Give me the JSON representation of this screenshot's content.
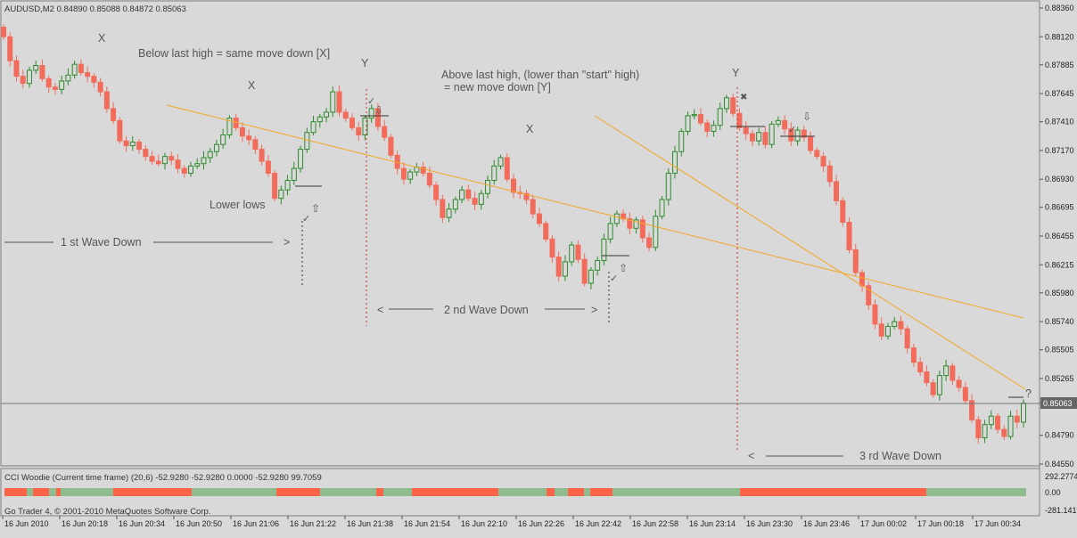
{
  "header": {
    "symbol_line": "AUDUSD,M2  0.84890 0.85088 0.84872 0.85063"
  },
  "annotations": {
    "below_last_high": "Below last high = same move down [X]",
    "above_last_high": "Above last high, (lower than \"start\" high)",
    "new_move_down": "= new move down [Y]",
    "lower_lows": "Lower lows",
    "x": "X",
    "y": "Y",
    "question": "?",
    "wave1": "1 st Wave Down",
    "wave2": "2 nd Wave Down",
    "wave3": "3 rd Wave Down",
    "arrow_right": ">",
    "arrow_left": "<"
  },
  "price_axis": {
    "labels": [
      "0.88360",
      "0.88120",
      "0.87885",
      "0.87645",
      "0.87410",
      "0.87170",
      "0.86930",
      "0.86695",
      "0.86455",
      "0.86215",
      "0.85980",
      "0.85740",
      "0.85505",
      "0.85265",
      "0.85063",
      "0.84790",
      "0.84550"
    ],
    "current": "0.85063"
  },
  "time_axis": {
    "labels": [
      "16 Jun 2010",
      "16 Jun 20:18",
      "16 Jun 20:34",
      "16 Jun 20:50",
      "16 Jun 21:06",
      "16 Jun 21:22",
      "16 Jun 21:38",
      "16 Jun 21:54",
      "16 Jun 22:10",
      "16 Jun 22:26",
      "16 Jun 22:42",
      "16 Jun 22:58",
      "16 Jun 23:14",
      "16 Jun 23:30",
      "16 Jun 23:46",
      "17 Jun 00:02",
      "17 Jun 00:18",
      "17 Jun 00:34"
    ]
  },
  "indicator": {
    "header": "CCI Woodie (Current time frame) (20,6) -52.9280 -52.9280 0.0000 -52.9280 99.7059",
    "copyright": "Go Trader 4, © 2001-2010 MetaQuotes Software Corp.",
    "axis_labels": [
      "292.2774",
      "0.00",
      "-281.1419"
    ]
  },
  "colors": {
    "bull": "#2e8b2e",
    "bear": "#f26b5b",
    "trendline": "#f5a623",
    "cci_green": "#8fbc8f",
    "cci_red": "#ff6347"
  },
  "chart_data": {
    "type": "candlestick",
    "symbol": "AUDUSD",
    "timeframe": "M2",
    "ohlc_last": {
      "open": 0.8489,
      "high": 0.85088,
      "low": 0.84872,
      "close": 0.85063
    },
    "closes": [
      0.8812,
      0.8792,
      0.8779,
      0.8773,
      0.8784,
      0.8788,
      0.8777,
      0.877,
      0.8768,
      0.8775,
      0.878,
      0.8789,
      0.8782,
      0.8779,
      0.8774,
      0.8766,
      0.8752,
      0.8742,
      0.8725,
      0.8721,
      0.8724,
      0.8718,
      0.8712,
      0.8708,
      0.8706,
      0.8712,
      0.8709,
      0.8702,
      0.8698,
      0.8704,
      0.8706,
      0.8711,
      0.8716,
      0.8722,
      0.873,
      0.8744,
      0.8736,
      0.8729,
      0.8726,
      0.8718,
      0.8708,
      0.8698,
      0.8677,
      0.8684,
      0.8692,
      0.8702,
      0.8718,
      0.8732,
      0.8741,
      0.8745,
      0.8749,
      0.8766,
      0.8749,
      0.8744,
      0.8736,
      0.873,
      0.8744,
      0.8752,
      0.8737,
      0.8728,
      0.8713,
      0.8702,
      0.8693,
      0.8699,
      0.8703,
      0.8698,
      0.8688,
      0.8676,
      0.8661,
      0.8668,
      0.8676,
      0.8684,
      0.8677,
      0.8672,
      0.8681,
      0.8692,
      0.8704,
      0.8711,
      0.8693,
      0.8682,
      0.8681,
      0.8676,
      0.8664,
      0.8656,
      0.8643,
      0.8628,
      0.8612,
      0.8624,
      0.8638,
      0.8626,
      0.8606,
      0.8617,
      0.8625,
      0.8643,
      0.8656,
      0.8664,
      0.866,
      0.8652,
      0.8659,
      0.8644,
      0.8636,
      0.8662,
      0.8676,
      0.8698,
      0.8716,
      0.8733,
      0.8746,
      0.8747,
      0.874,
      0.8733,
      0.8738,
      0.8752,
      0.8761,
      0.8748,
      0.8736,
      0.8731,
      0.8725,
      0.8732,
      0.8722,
      0.8739,
      0.8742,
      0.8735,
      0.8725,
      0.8734,
      0.8728,
      0.8717,
      0.8712,
      0.8704,
      0.8691,
      0.8675,
      0.8657,
      0.8634,
      0.8615,
      0.8604,
      0.8588,
      0.8572,
      0.8562,
      0.857,
      0.8574,
      0.8568,
      0.8552,
      0.854,
      0.8532,
      0.8523,
      0.8513,
      0.8529,
      0.8537,
      0.8525,
      0.8519,
      0.8508,
      0.8492,
      0.8477,
      0.8488,
      0.8495,
      0.8484,
      0.8478,
      0.8495,
      0.849,
      0.8506
    ]
  }
}
